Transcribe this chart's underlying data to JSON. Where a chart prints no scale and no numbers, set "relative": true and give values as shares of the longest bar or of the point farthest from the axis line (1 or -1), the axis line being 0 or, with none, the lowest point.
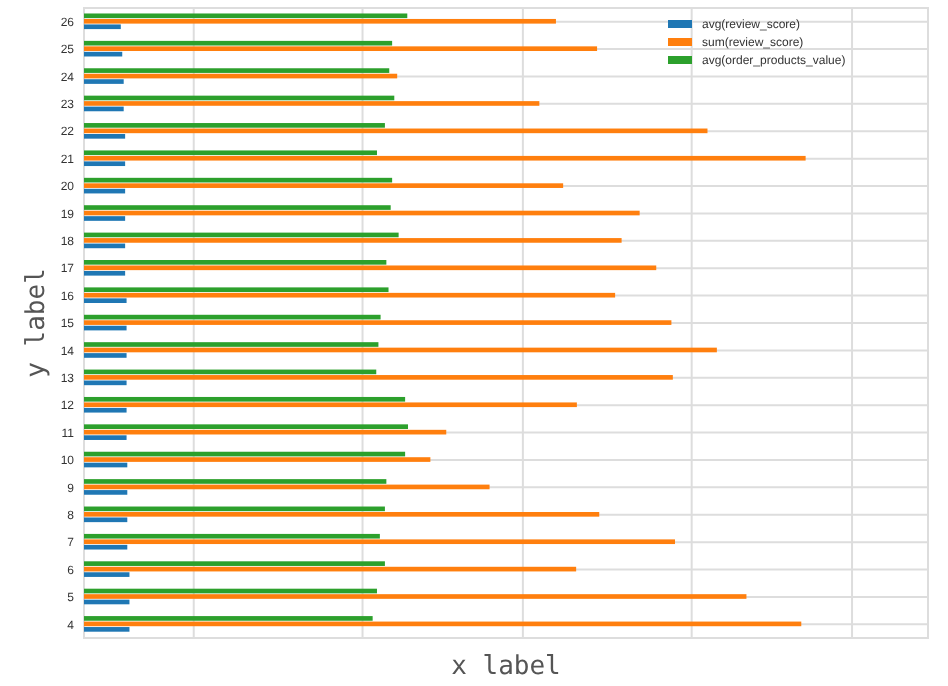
{
  "chart_data": {
    "type": "bar",
    "orientation": "horizontal",
    "relative": true,
    "xlabel": "x label",
    "ylabel": "y label",
    "grid": true,
    "legend": "top right",
    "categories": [
      "26",
      "25",
      "24",
      "23",
      "22",
      "21",
      "20",
      "19",
      "18",
      "17",
      "16",
      "15",
      "14",
      "13",
      "12",
      "11",
      "10",
      "9",
      "8",
      "7",
      "6",
      "5",
      "4"
    ],
    "series": [
      {
        "name": "avg(review_score)",
        "color": "#1f77b4",
        "values": [
          0.051,
          0.053,
          0.055,
          0.055,
          0.057,
          0.057,
          0.057,
          0.057,
          0.057,
          0.057,
          0.059,
          0.059,
          0.059,
          0.059,
          0.059,
          0.059,
          0.06,
          0.06,
          0.06,
          0.06,
          0.063,
          0.063,
          0.063
        ]
      },
      {
        "name": "sum(review_score)",
        "color": "#ff7f0e",
        "values": [
          0.654,
          0.711,
          0.434,
          0.631,
          0.864,
          1,
          0.664,
          0.77,
          0.745,
          0.793,
          0.736,
          0.814,
          0.877,
          0.816,
          0.683,
          0.502,
          0.48,
          0.562,
          0.714,
          0.819,
          0.682,
          0.918,
          0.994
        ]
      },
      {
        "name": "avg(order_products_value)",
        "color": "#2ca02c",
        "values": [
          0.448,
          0.427,
          0.423,
          0.43,
          0.417,
          0.406,
          0.427,
          0.425,
          0.436,
          0.419,
          0.422,
          0.411,
          0.408,
          0.405,
          0.445,
          0.449,
          0.445,
          0.419,
          0.417,
          0.41,
          0.417,
          0.406,
          0.4
        ]
      }
    ]
  }
}
